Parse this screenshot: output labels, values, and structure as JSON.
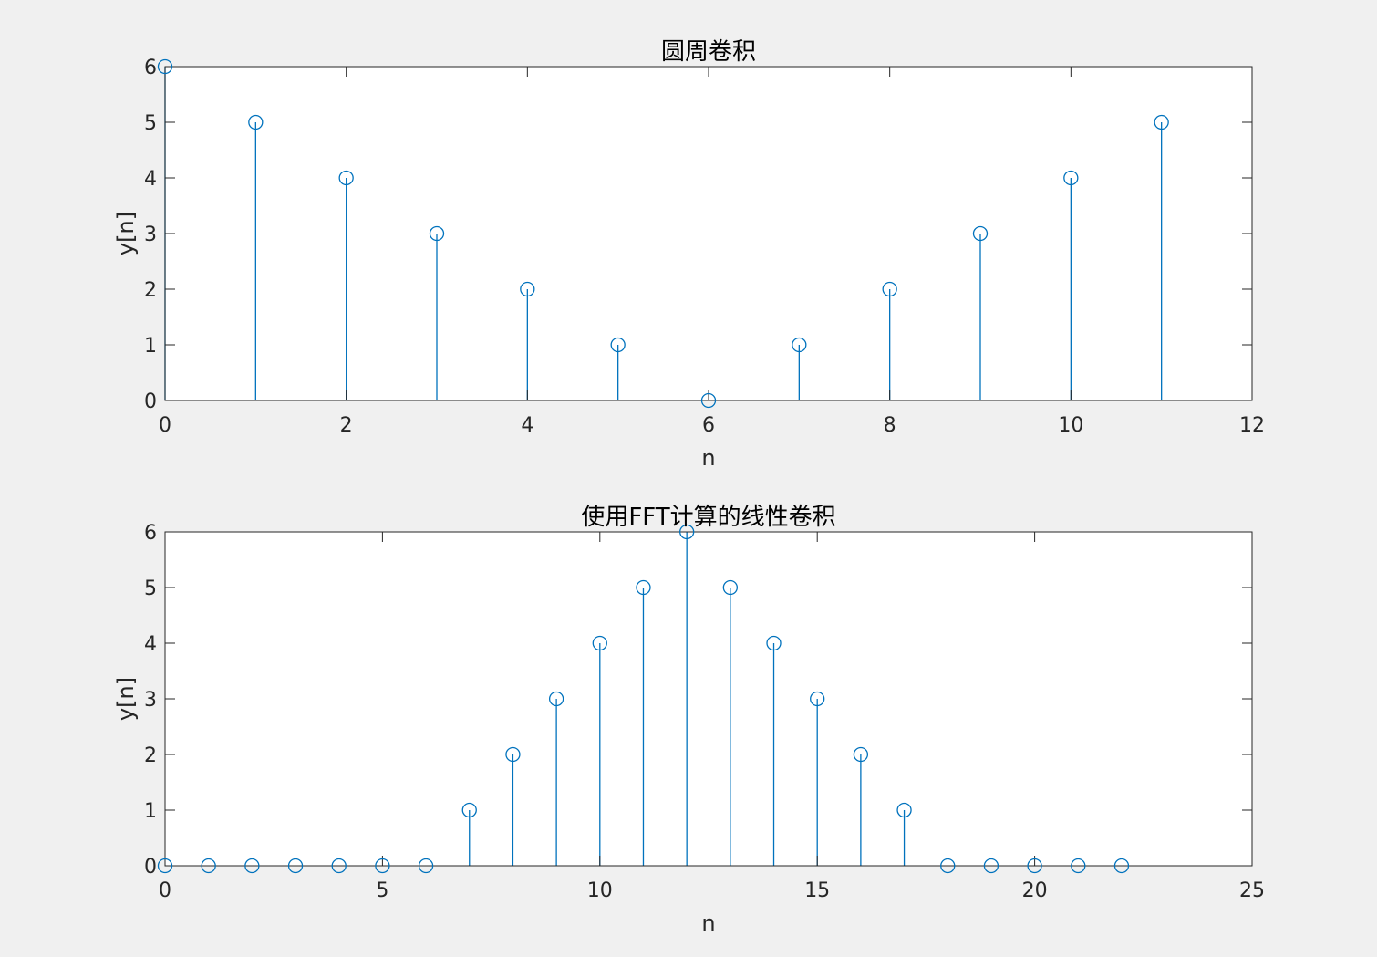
{
  "colors": {
    "figure_background": "#f0f0f0",
    "axes_background": "#ffffff",
    "axis_color": "#262626",
    "stem_color": "#0072bd"
  },
  "chart_data": [
    {
      "type": "stem",
      "title": "圆周卷积",
      "xlabel": "n",
      "ylabel": "y[n]",
      "xlim": [
        0,
        12
      ],
      "ylim": [
        0,
        6
      ],
      "xticks": [
        0,
        2,
        4,
        6,
        8,
        10,
        12
      ],
      "yticks": [
        0,
        1,
        2,
        3,
        4,
        5,
        6
      ],
      "x": [
        0,
        1,
        2,
        3,
        4,
        5,
        6,
        7,
        8,
        9,
        10,
        11
      ],
      "y": [
        6,
        5,
        4,
        3,
        2,
        1,
        0,
        1,
        2,
        3,
        4,
        5
      ],
      "marker": "circle",
      "grid": false
    },
    {
      "type": "stem",
      "title": "使用FFT计算的线性卷积",
      "xlabel": "n",
      "ylabel": "y[n]",
      "xlim": [
        0,
        25
      ],
      "ylim": [
        0,
        6
      ],
      "xticks": [
        0,
        5,
        10,
        15,
        20,
        25
      ],
      "yticks": [
        0,
        1,
        2,
        3,
        4,
        5,
        6
      ],
      "x": [
        0,
        1,
        2,
        3,
        4,
        5,
        6,
        7,
        8,
        9,
        10,
        11,
        12,
        13,
        14,
        15,
        16,
        17,
        18,
        19,
        20,
        21,
        22
      ],
      "y": [
        0,
        0,
        0,
        0,
        0,
        0,
        0,
        1,
        2,
        3,
        4,
        5,
        6,
        5,
        4,
        3,
        2,
        1,
        0,
        0,
        0,
        0,
        0
      ],
      "marker": "circle",
      "grid": false
    }
  ]
}
